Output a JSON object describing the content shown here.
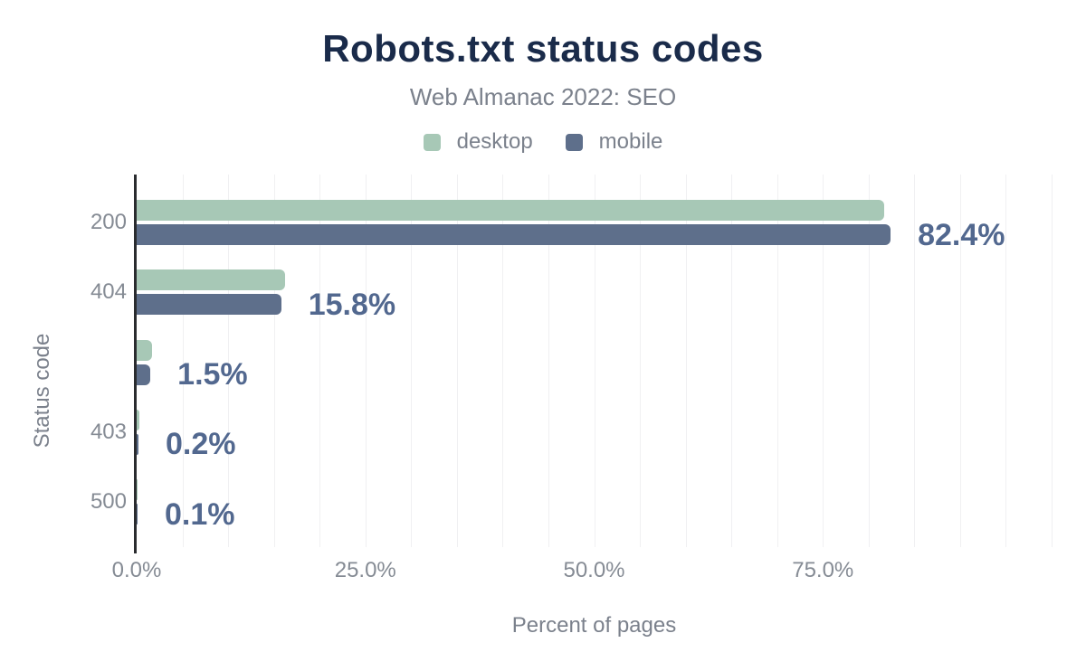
{
  "title": "Robots.txt status codes",
  "subtitle": "Web Almanac 2022: SEO",
  "legend": {
    "position": "top",
    "items": [
      {
        "label": "desktop",
        "color": "#a7c8b6"
      },
      {
        "label": "mobile",
        "color": "#5e6f8b"
      }
    ]
  },
  "chart_data": {
    "type": "bar",
    "orientation": "horizontal",
    "title": "Robots.txt status codes",
    "subtitle": "Web Almanac 2022: SEO",
    "categories": [
      "200",
      "404",
      "",
      "403",
      "500"
    ],
    "series": [
      {
        "name": "desktop",
        "color": "#a7c8b6",
        "values": [
          81.7,
          16.2,
          1.7,
          0.3,
          0.1
        ]
      },
      {
        "name": "mobile",
        "color": "#5e6f8b",
        "values": [
          82.4,
          15.8,
          1.5,
          0.2,
          0.1
        ]
      }
    ],
    "data_labels": [
      "82.4%",
      "15.8%",
      "1.5%",
      "0.2%",
      "0.1%"
    ],
    "data_labels_series": "mobile",
    "xlabel": "Percent of pages",
    "ylabel": "Status code",
    "xlim": [
      0,
      100
    ],
    "x_tick_values": [
      0,
      25,
      50,
      75
    ],
    "x_tick_labels": [
      "0.0%",
      "25.0%",
      "50.0%",
      "75.0%"
    ],
    "grid": true,
    "grid_step": 5,
    "legend_position": "top"
  },
  "colors": {
    "title_text": "#1a2b4a",
    "secondary_text": "#7b818c",
    "tick_text": "#858b94",
    "data_label_text": "#52688f",
    "gridline": "#f0f0f2",
    "axis_line": "#2a2c2f",
    "background": "#ffffff"
  }
}
